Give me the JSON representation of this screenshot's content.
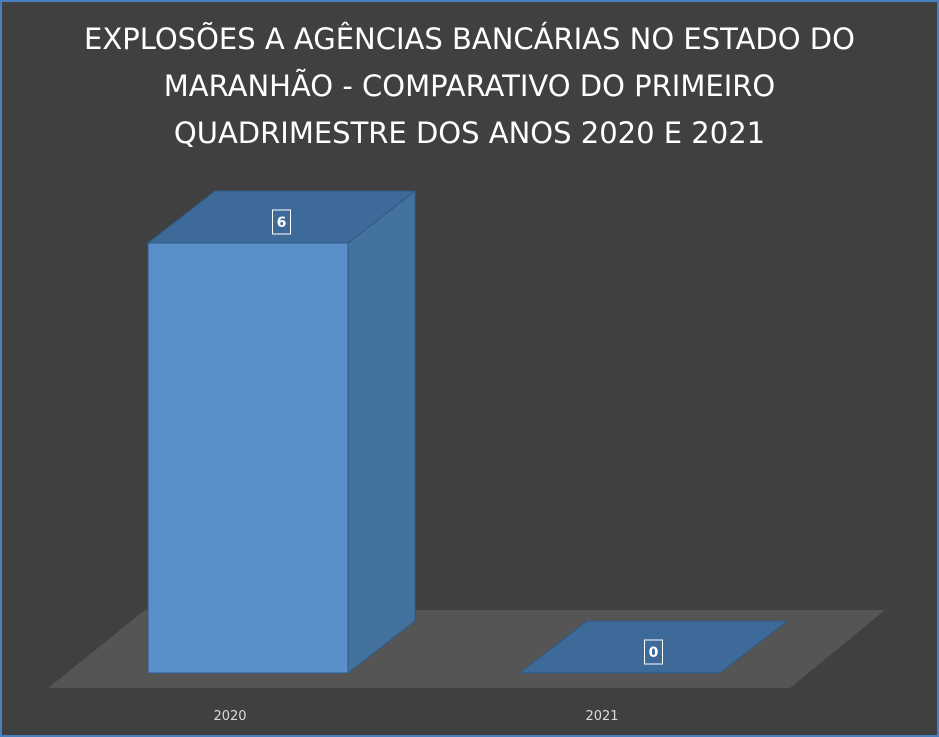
{
  "chart_data": {
    "type": "bar3d",
    "title": "EXPLOSÕES A AGÊNCIAS BANCÁRIAS NO ESTADO DO MARANHÃO - COMPARATIVO DO PRIMEIRO QUADRIMESTRE DOS ANOS 2020 E 2021",
    "categories": [
      "2020",
      "2021"
    ],
    "values": [
      6,
      0
    ],
    "color": "#5b8fc9"
  }
}
